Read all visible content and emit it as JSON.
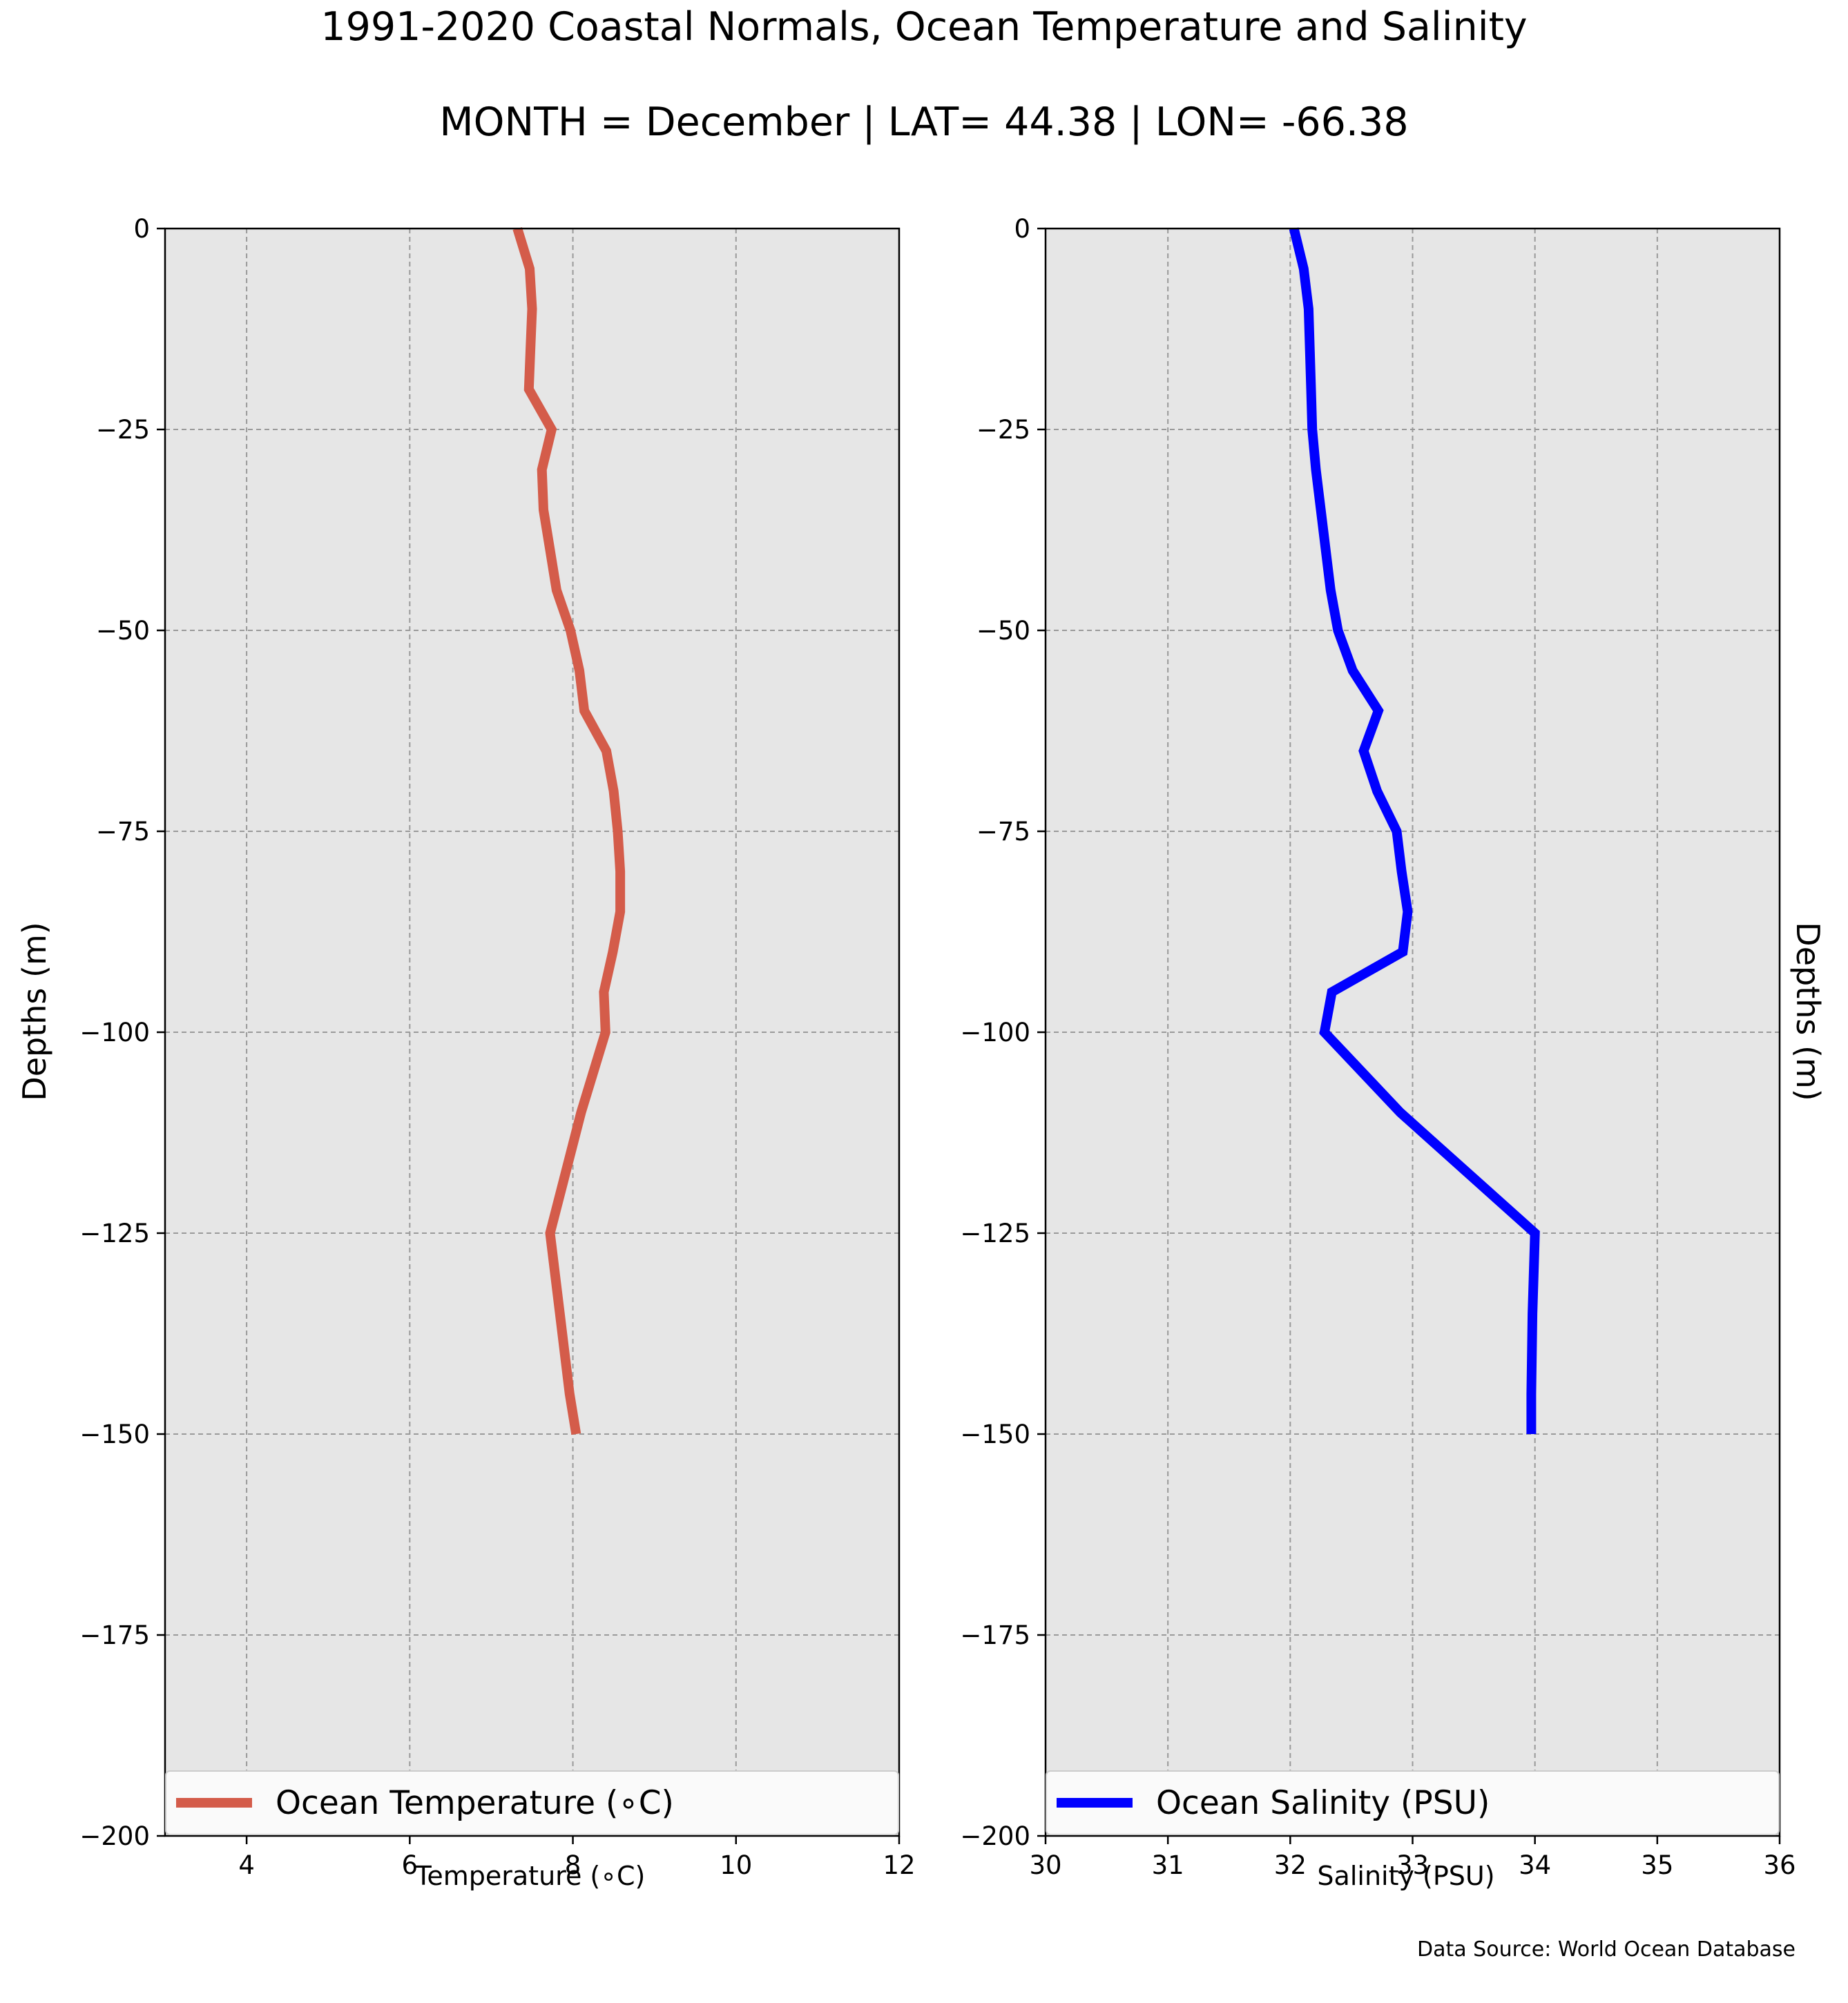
{
  "header": {
    "title": "1991-2020 Coastal Normals, Ocean Temperature and Salinity",
    "subtitle": "MONTH = December | LAT= 44.38 | LON= -66.38"
  },
  "footer": {
    "source": "Data Source: World Ocean Database"
  },
  "colors": {
    "temperature_line": "#d45c4a",
    "salinity_line": "#0000ff",
    "plot_background": "#e6e6e6",
    "grid": "#9a9a9a"
  },
  "chart_data": [
    {
      "type": "line",
      "panel": "left",
      "xlabel": "Temperature ($^\\circ$C)",
      "xlabel_display": "Temperature (∘C)",
      "ylabel": "Depths (m)",
      "xlim": [
        3,
        12
      ],
      "ylim": [
        -200,
        0
      ],
      "xticks": [
        4,
        6,
        8,
        10,
        12
      ],
      "xtick_labels": [
        "4",
        "6",
        "8",
        "10",
        "12"
      ],
      "yticks": [
        0,
        -25,
        -50,
        -75,
        -100,
        -125,
        -150,
        -175,
        -200
      ],
      "ytick_labels": [
        "0",
        "−25",
        "−50",
        "−75",
        "−100",
        "−125",
        "−150",
        "−175",
        "−200"
      ],
      "grid": true,
      "legend_position": "lower center",
      "series": [
        {
          "name": "Ocean Temperature ($^\\circ$C)",
          "name_display": "Ocean Temperature (∘C)",
          "color": "#d45c4a",
          "x": [
            7.32,
            7.47,
            7.5,
            7.48,
            7.46,
            7.74,
            7.62,
            7.64,
            7.72,
            7.8,
            7.97,
            8.08,
            8.14,
            8.41,
            8.5,
            8.55,
            8.58,
            8.58,
            8.49,
            8.38,
            8.4,
            8.1,
            7.72,
            7.84,
            7.96,
            8.04
          ],
          "y": [
            0,
            -5,
            -10,
            -15,
            -20,
            -25,
            -30,
            -35,
            -40,
            -45,
            -50,
            -55,
            -60,
            -65,
            -70,
            -75,
            -80,
            -85,
            -90,
            -95,
            -100,
            -110,
            -125,
            -135,
            -145,
            -150
          ]
        }
      ]
    },
    {
      "type": "line",
      "panel": "right",
      "xlabel": "Salinity (PSU)",
      "ylabel": "Depths (m)",
      "xlim": [
        30,
        36
      ],
      "ylim": [
        -200,
        0
      ],
      "xticks": [
        30,
        31,
        32,
        33,
        34,
        35,
        36
      ],
      "xtick_labels": [
        "30",
        "31",
        "32",
        "33",
        "34",
        "35",
        "36"
      ],
      "yticks": [
        0,
        -25,
        -50,
        -75,
        -100,
        -125,
        -150,
        -175,
        -200
      ],
      "ytick_labels": [
        "0",
        "−25",
        "−50",
        "−75",
        "−100",
        "−125",
        "−150",
        "−175",
        "−200"
      ],
      "grid": true,
      "legend_position": "lower center",
      "series": [
        {
          "name": "Ocean Salinity (PSU)",
          "color": "#0000ff",
          "x": [
            32.03,
            32.11,
            32.15,
            32.16,
            32.17,
            32.18,
            32.21,
            32.25,
            32.29,
            32.33,
            32.39,
            32.51,
            32.72,
            32.6,
            32.71,
            32.87,
            32.91,
            32.96,
            32.92,
            32.34,
            32.28,
            32.9,
            34.0,
            33.98,
            33.97,
            33.97
          ],
          "y": [
            0,
            -5,
            -10,
            -15,
            -20,
            -25,
            -30,
            -35,
            -40,
            -45,
            -50,
            -55,
            -60,
            -65,
            -70,
            -75,
            -80,
            -85,
            -90,
            -95,
            -100,
            -110,
            -125,
            -135,
            -145,
            -150
          ]
        }
      ]
    }
  ]
}
